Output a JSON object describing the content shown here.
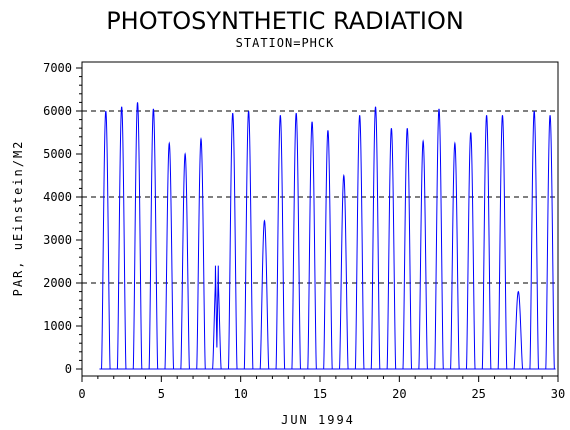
{
  "chart_data": {
    "type": "line",
    "title": "PHOTOSYNTHETIC RADIATION",
    "subtitle": "STATION=PHCK",
    "xlabel": "JUN 1994",
    "ylabel": "PAR, uEinstein/M2",
    "xlim": [
      0,
      30
    ],
    "ylim": [
      0,
      7000
    ],
    "xticks": [
      0,
      5,
      10,
      15,
      20,
      25,
      30
    ],
    "yticks": [
      0,
      1000,
      2000,
      3000,
      4000,
      5000,
      6000,
      7000
    ],
    "reference_lines": [
      2000,
      4000,
      6000
    ],
    "grid": false,
    "series": [
      {
        "color": "#0000ff",
        "daily_peak_day": [
          1.5,
          2.5,
          3.5,
          4.5,
          5.5,
          6.5,
          7.5,
          8.5,
          9.5,
          10.5,
          11.5,
          12.5,
          13.5,
          14.5,
          15.5,
          16.5,
          17.5,
          18.5,
          19.5,
          20.5,
          21.5,
          22.5,
          23.5,
          24.5,
          25.5,
          26.5,
          27.5,
          28.5,
          29.5
        ],
        "daily_peak_par": [
          6000,
          6100,
          6200,
          6050,
          5250,
          5000,
          5350,
          2500,
          5950,
          6000,
          3450,
          5900,
          5950,
          5750,
          5550,
          4500,
          5900,
          6100,
          5600,
          5600,
          5300,
          6050,
          5250,
          5500,
          5900,
          5900,
          1800,
          6000,
          5900
        ]
      }
    ]
  }
}
